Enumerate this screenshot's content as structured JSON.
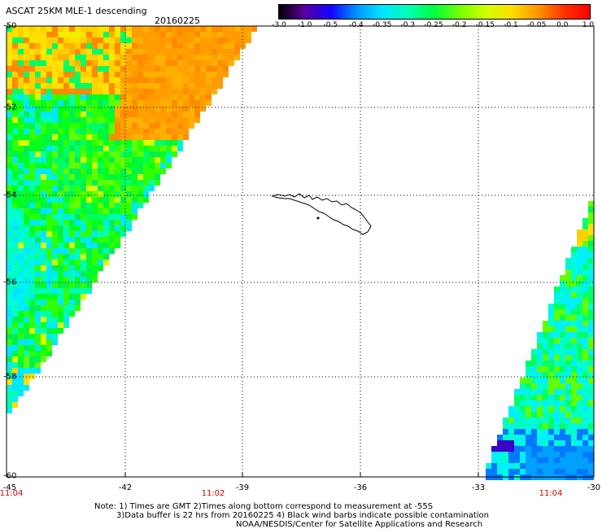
{
  "header": {
    "title": "ASCAT 25KM MLE-1 descending",
    "date": "20160225"
  },
  "colorbar": {
    "labels": [
      "-3.0",
      "-1.0",
      "-0.5",
      "-0.4",
      "-0.35",
      "-0.3",
      "-0.25",
      "-0.2",
      "-0.15",
      "-0.1",
      "-0.05",
      "0.0",
      "1.0"
    ],
    "colors": [
      "#000000",
      "#5a00a0",
      "#1400ff",
      "#0096ff",
      "#00e6ff",
      "#00ffb4",
      "#00ff3c",
      "#78ff00",
      "#d2ff00",
      "#ffdc00",
      "#ff9600",
      "#ff3200",
      "#ff0000"
    ]
  },
  "map": {
    "lat_labels": [
      "-50",
      "-52",
      "-54",
      "-56",
      "-58",
      "-60"
    ],
    "lon_labels": [
      "-45",
      "-42",
      "-39",
      "-36",
      "-33",
      "-30"
    ],
    "time_labels": [
      "11:04",
      "11:02",
      "11:04"
    ]
  },
  "notes": {
    "line1": "Note: 1) Times are GMT 2)Times along bottom correspond to measurement at -55S",
    "line2": "3)Data buffer is 22 hrs from 20160225 4) Black wind barbs indicate possible contamination",
    "line3": "NOAA/NESDIS/Center for Satellite Applications and Research"
  }
}
